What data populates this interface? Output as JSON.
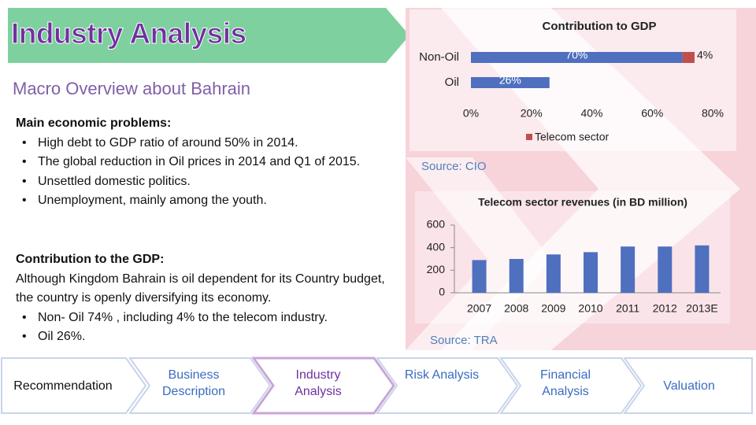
{
  "header": {
    "title": "Industry Analysis",
    "subtitle": "Macro Overview about Bahrain"
  },
  "problems": {
    "heading": "Main economic problems:",
    "bullets": [
      "High debt to GDP ratio of around 50% in 2014.",
      "The global reduction in Oil prices in 2014 and Q1 of 2015.",
      "Unsettled domestic politics.",
      "Unemployment, mainly among the youth."
    ]
  },
  "gdp_text": {
    "heading": "Contribution to the GDP:",
    "body": "Although Kingdom Bahrain is oil dependent for its Country budget, the country is openly diversifying its economy.",
    "bullets": [
      "Non- Oil 74% , including 4% to the telecom industry.",
      "Oil 26%."
    ]
  },
  "chart_data": [
    {
      "type": "hbar-stacked",
      "title": "Contribution to GDP",
      "source": "Source: CIO",
      "categories": [
        "Non-Oil",
        "Oil"
      ],
      "series": [
        {
          "color": "#4f6fbf",
          "values": [
            70,
            26
          ],
          "value_labels": [
            "70%",
            "26%"
          ]
        },
        {
          "name": "Telecom sector",
          "color": "#c0504d",
          "values": [
            4,
            null
          ],
          "value_labels": [
            "4%",
            null
          ]
        }
      ],
      "xlim": [
        0,
        80
      ],
      "xticks": [
        {
          "value": 0,
          "label": "0%"
        },
        {
          "value": 20,
          "label": "20%"
        },
        {
          "value": 40,
          "label": "40%"
        },
        {
          "value": 60,
          "label": "60%"
        },
        {
          "value": 80,
          "label": "80%"
        }
      ]
    },
    {
      "type": "bar",
      "title": "Telecom sector revenues (in BD million)",
      "source": "Source: TRA",
      "categories": [
        "2007",
        "2008",
        "2009",
        "2010",
        "2011",
        "2012",
        "2013E"
      ],
      "values": [
        290,
        300,
        340,
        360,
        410,
        410,
        420
      ],
      "color": "#4f6fbf",
      "ylim": [
        0,
        600
      ],
      "yticks": [
        0,
        200,
        400,
        600
      ]
    }
  ],
  "nav": [
    "Recommendation",
    "Business Description",
    "Industry Analysis",
    "Risk Analysis",
    "Financial Analysis",
    "Valuation"
  ]
}
